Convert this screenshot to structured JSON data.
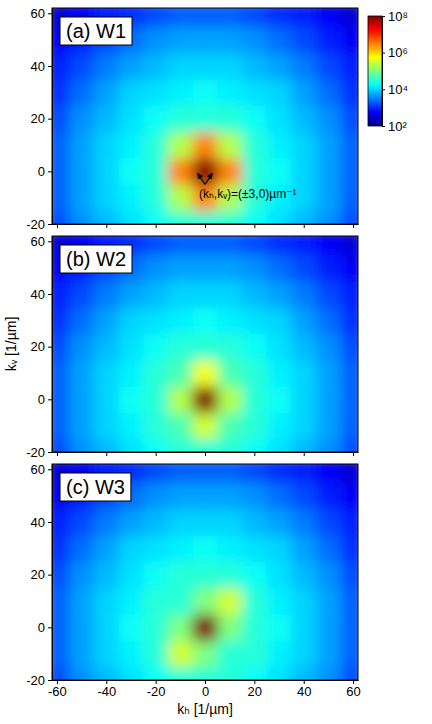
{
  "chart_data": [
    {
      "type": "heatmap",
      "title": "(a) W1",
      "tick_labels": "y",
      "xlim": [
        -62,
        62
      ],
      "ylim": [
        -20,
        62
      ],
      "xticks": [
        -60,
        -40,
        -20,
        0,
        20,
        40,
        60
      ],
      "yticks": [
        -20,
        0,
        20,
        40,
        60
      ],
      "x": [
        -60,
        -50,
        -40,
        -30,
        -20,
        -10,
        0,
        10,
        20,
        30,
        40,
        50,
        60
      ],
      "y": [
        -20,
        -10,
        0,
        10,
        20,
        30,
        40,
        50,
        60
      ],
      "values": [
        [
          1500,
          4000,
          7000,
          12000,
          20000,
          30000,
          30000,
          30000,
          20000,
          12000,
          7000,
          4000,
          1500
        ],
        [
          2000,
          5000,
          10000,
          15000,
          30000,
          200000,
          3000000,
          200000,
          30000,
          15000,
          10000,
          5000,
          2000
        ],
        [
          2000,
          5000,
          10000,
          20000,
          30000,
          3000000,
          100000000,
          3000000,
          30000,
          20000,
          10000,
          5000,
          2000
        ],
        [
          2000,
          5000,
          10000,
          15000,
          30000,
          200000,
          3000000,
          200000,
          30000,
          15000,
          10000,
          5000,
          2000
        ],
        [
          1500,
          4000,
          7000,
          12000,
          20000,
          30000,
          30000,
          30000,
          20000,
          12000,
          7000,
          4000,
          1500
        ],
        [
          1000,
          2500,
          5000,
          10000,
          12000,
          15000,
          20000,
          15000,
          12000,
          10000,
          5000,
          2500,
          1000
        ],
        [
          800,
          1500,
          3000,
          5000,
          7000,
          10000,
          10000,
          10000,
          7000,
          5000,
          3000,
          1500,
          800
        ],
        [
          500,
          800,
          1500,
          2500,
          4000,
          5000,
          5000,
          5000,
          4000,
          2500,
          1500,
          800,
          500
        ],
        [
          300,
          500,
          800,
          1000,
          1500,
          2000,
          2000,
          2000,
          1500,
          1000,
          800,
          500,
          300
        ]
      ],
      "colorbar": {
        "log": true,
        "range": [
          100,
          100000000
        ],
        "ticks": [
          {
            "value": 100,
            "label": "10²"
          },
          {
            "value": 10000,
            "label": "10⁴"
          },
          {
            "value": 1000000,
            "label": "10⁶"
          },
          {
            "value": 100000000,
            "label": "10⁸"
          }
        ]
      },
      "annotation": {
        "text": "(kₕ,kᵥ)=(±3,0)µm⁻¹",
        "x": [
          -3,
          3
        ],
        "y": [
          0,
          0
        ]
      }
    },
    {
      "type": "heatmap",
      "title": "(b) W2",
      "tick_labels": "y",
      "y_label": "kᵥ [1/µm]",
      "xlim": [
        -62,
        62
      ],
      "ylim": [
        -20,
        62
      ],
      "xticks": [
        -60,
        -40,
        -20,
        0,
        20,
        40,
        60
      ],
      "yticks": [
        -20,
        0,
        20,
        40,
        60
      ],
      "x": [
        -60,
        -50,
        -40,
        -30,
        -20,
        -10,
        0,
        10,
        20,
        30,
        40,
        50,
        60
      ],
      "y": [
        -20,
        -10,
        0,
        10,
        20,
        30,
        40,
        50,
        60
      ],
      "values": [
        [
          1500,
          4000,
          7000,
          12000,
          20000,
          30000,
          30000,
          30000,
          20000,
          12000,
          7000,
          4000,
          1500
        ],
        [
          2000,
          5000,
          10000,
          15000,
          30000,
          50000,
          300000,
          50000,
          30000,
          15000,
          10000,
          5000,
          2000
        ],
        [
          2000,
          5000,
          10000,
          20000,
          30000,
          200000,
          100000000,
          200000,
          30000,
          20000,
          10000,
          5000,
          2000
        ],
        [
          2000,
          5000,
          10000,
          15000,
          30000,
          50000,
          500000,
          50000,
          30000,
          15000,
          10000,
          5000,
          2000
        ],
        [
          1500,
          4000,
          7000,
          12000,
          20000,
          30000,
          30000,
          30000,
          20000,
          12000,
          7000,
          4000,
          1500
        ],
        [
          1000,
          2500,
          5000,
          10000,
          12000,
          15000,
          20000,
          15000,
          12000,
          10000,
          5000,
          2500,
          1000
        ],
        [
          800,
          1500,
          3000,
          5000,
          7000,
          10000,
          10000,
          10000,
          7000,
          5000,
          3000,
          1500,
          800
        ],
        [
          500,
          800,
          1500,
          2500,
          4000,
          5000,
          5000,
          5000,
          4000,
          2500,
          1500,
          800,
          500
        ],
        [
          300,
          500,
          800,
          1000,
          1500,
          2000,
          2000,
          2000,
          1500,
          1000,
          800,
          500,
          300
        ]
      ]
    },
    {
      "type": "heatmap",
      "title": "(c) W3",
      "x_label": "kₕ [1/µm]",
      "xlim": [
        -62,
        62
      ],
      "ylim": [
        -20,
        62
      ],
      "xticks": [
        -60,
        -40,
        -20,
        0,
        20,
        40,
        60
      ],
      "yticks": [
        -20,
        0,
        20,
        40,
        60
      ],
      "x": [
        -60,
        -50,
        -40,
        -30,
        -20,
        -10,
        0,
        10,
        20,
        30,
        40,
        50,
        60
      ],
      "y": [
        -20,
        -10,
        0,
        10,
        20,
        30,
        40,
        50,
        60
      ],
      "values": [
        [
          1500,
          4000,
          7000,
          12000,
          20000,
          30000,
          30000,
          30000,
          20000,
          12000,
          7000,
          4000,
          1500
        ],
        [
          2000,
          5000,
          10000,
          15000,
          30000,
          300000,
          100000,
          30000,
          30000,
          15000,
          10000,
          5000,
          2000
        ],
        [
          2000,
          5000,
          10000,
          20000,
          30000,
          100000,
          100000000,
          100000,
          30000,
          20000,
          10000,
          5000,
          2000
        ],
        [
          2000,
          5000,
          10000,
          15000,
          30000,
          30000,
          100000,
          300000,
          30000,
          15000,
          10000,
          5000,
          2000
        ],
        [
          1500,
          4000,
          7000,
          12000,
          20000,
          30000,
          30000,
          30000,
          20000,
          12000,
          7000,
          4000,
          1500
        ],
        [
          1000,
          2500,
          5000,
          10000,
          12000,
          15000,
          20000,
          15000,
          12000,
          10000,
          5000,
          2500,
          1000
        ],
        [
          800,
          1500,
          3000,
          5000,
          7000,
          10000,
          10000,
          10000,
          7000,
          5000,
          3000,
          1500,
          800
        ],
        [
          500,
          800,
          1500,
          2500,
          4000,
          5000,
          5000,
          5000,
          4000,
          2500,
          1500,
          800,
          500
        ],
        [
          300,
          500,
          800,
          1000,
          1500,
          2000,
          2000,
          2000,
          1500,
          1000,
          800,
          500,
          300
        ]
      ]
    }
  ]
}
